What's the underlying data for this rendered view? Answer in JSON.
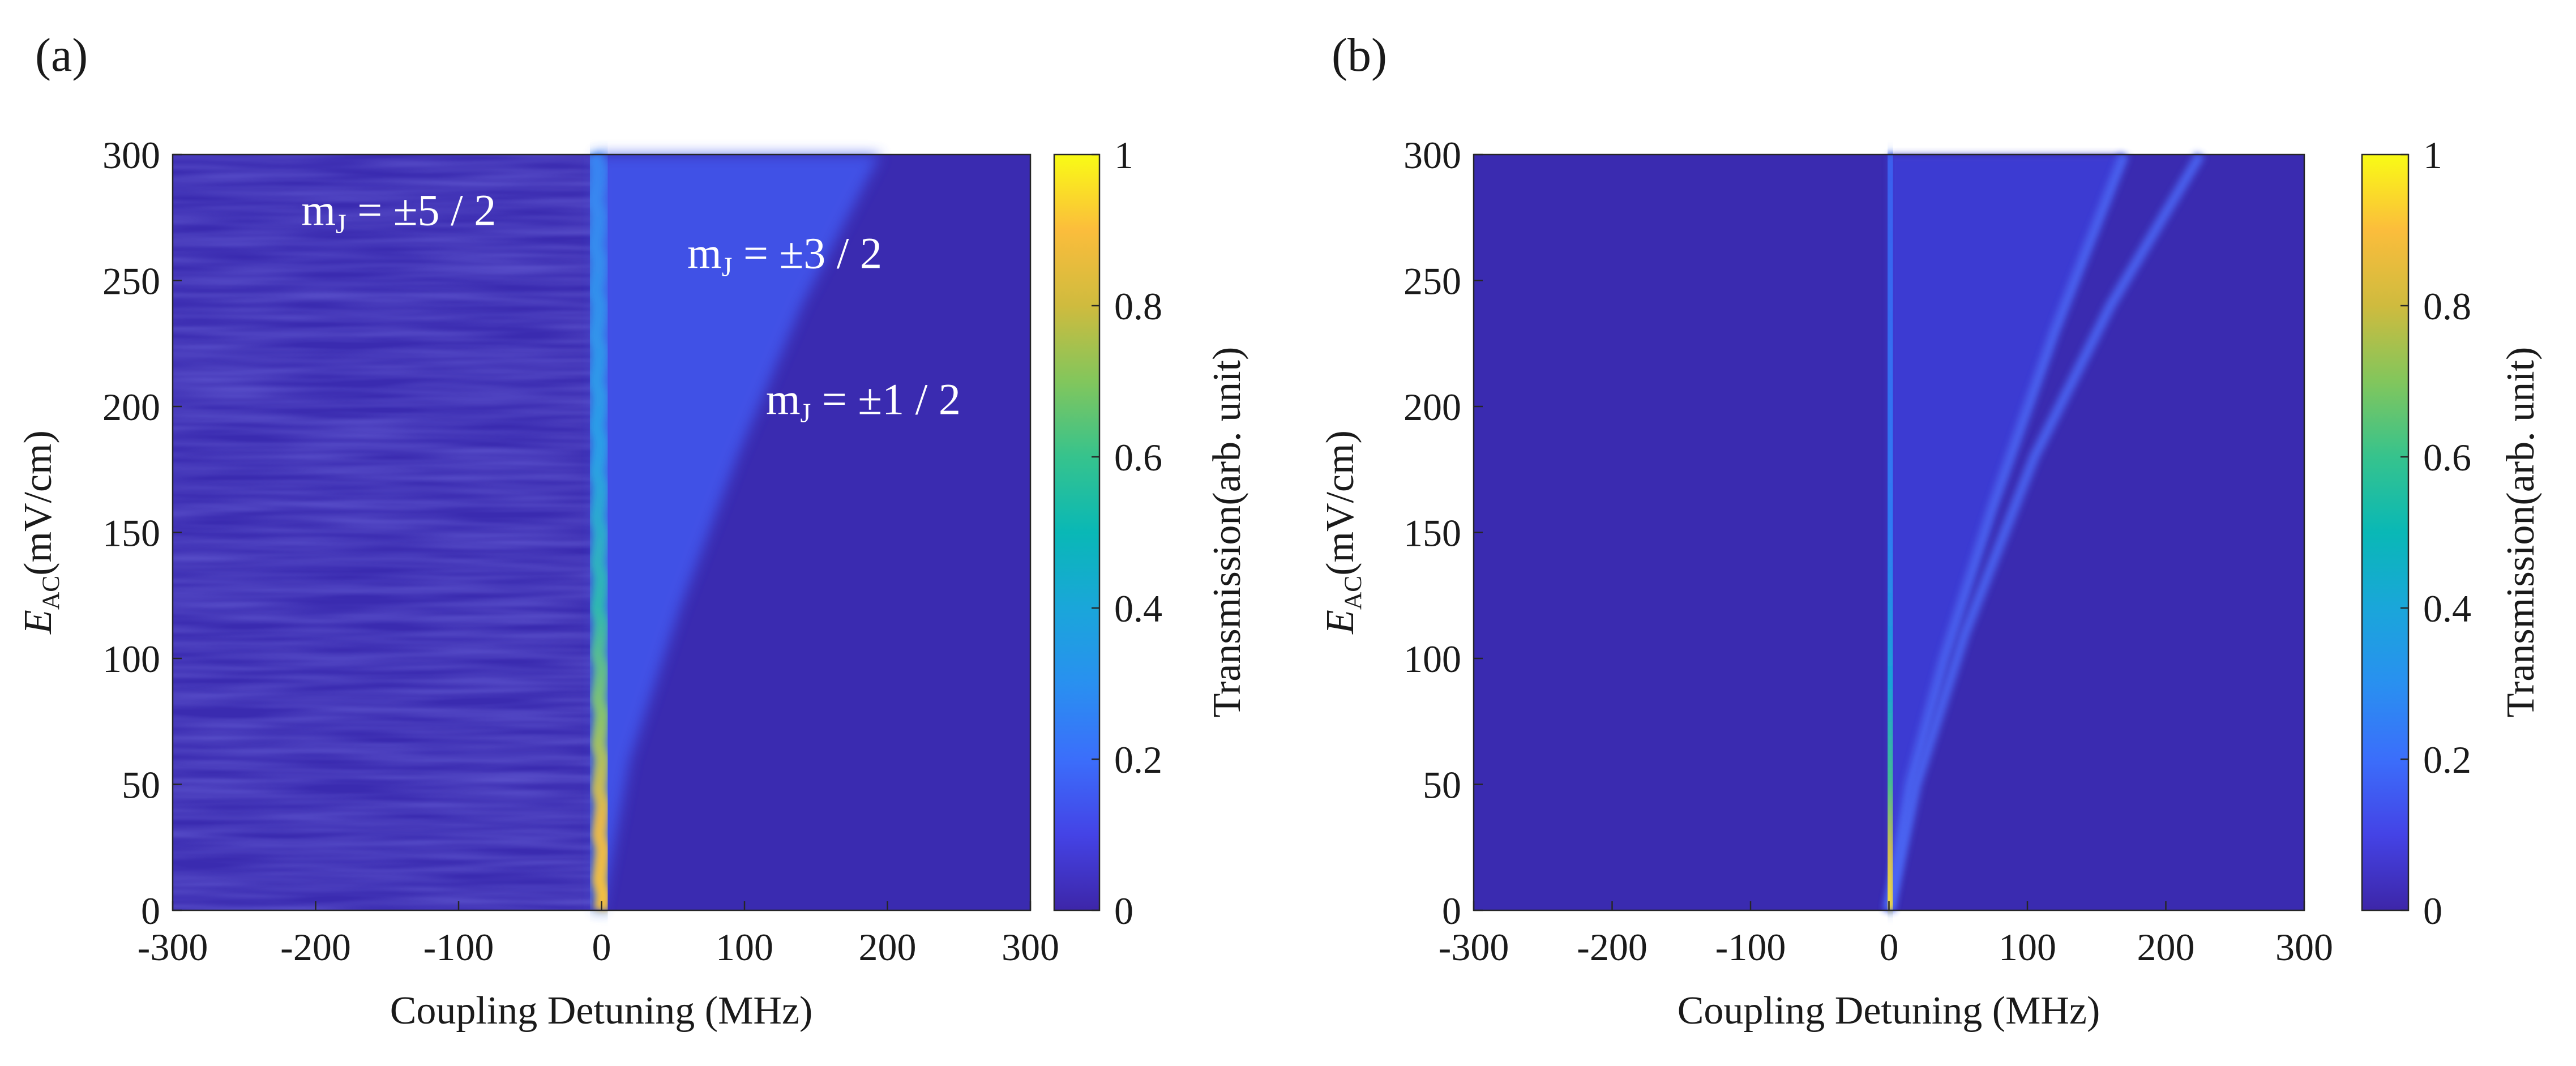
{
  "chart_data": [
    {
      "type": "heatmap",
      "panel_label": "(a)",
      "xlabel": "Coupling Detuning (MHz)",
      "ylabel": {
        "main": "E",
        "sub": "AC",
        "unit": "(mV/cm)"
      },
      "xlim": [
        -300,
        300
      ],
      "ylim": [
        0,
        300
      ],
      "xticks": [
        -300,
        -200,
        -100,
        0,
        100,
        200,
        300
      ],
      "yticks": [
        0,
        50,
        100,
        150,
        200,
        250,
        300
      ],
      "colorbar": {
        "label": "Transmission(arb. unit)",
        "range": [
          0,
          1
        ],
        "ticks": [
          0,
          0.2,
          0.4,
          0.6,
          0.8,
          1
        ]
      },
      "annotations": [
        {
          "text_main": "m",
          "text_sub": "J",
          "text_rest": " = ±5 / 2",
          "x": -210,
          "y": 272
        },
        {
          "text_main": "m",
          "text_sub": "J",
          "text_rest": " = ±3 / 2",
          "x": 60,
          "y": 255
        },
        {
          "text_main": "m",
          "text_sub": "J",
          "text_rest": " = ±1 / 2",
          "x": 115,
          "y": 197
        }
      ],
      "features": {
        "central_line": {
          "x_center": 0,
          "peak_transmission": 0.85
        },
        "fan_edge": [
          [
            0,
            0
          ],
          [
            20,
            60
          ],
          [
            55,
            120
          ],
          [
            95,
            180
          ],
          [
            140,
            240
          ],
          [
            195,
            300
          ]
        ]
      }
    },
    {
      "type": "heatmap",
      "panel_label": "(b)",
      "xlabel": "Coupling Detuning (MHz)",
      "ylabel": {
        "main": "E",
        "sub": "AC",
        "unit": "(mV/cm)"
      },
      "xlim": [
        -300,
        300
      ],
      "ylim": [
        0,
        300
      ],
      "xticks": [
        -300,
        -200,
        -100,
        0,
        100,
        200,
        300
      ],
      "yticks": [
        0,
        50,
        100,
        150,
        200,
        250,
        300
      ],
      "colorbar": {
        "label": "Transmission(arb. unit)",
        "range": [
          0,
          1
        ],
        "ticks": [
          0,
          0.2,
          0.4,
          0.6,
          0.8,
          1
        ]
      },
      "features": {
        "central_line": {
          "x_center": 0,
          "peak_transmission": 0.9
        },
        "branches": [
          [
            [
              0,
              0
            ],
            [
              15,
              50
            ],
            [
              40,
              100
            ],
            [
              75,
              160
            ],
            [
              120,
              230
            ],
            [
              170,
              300
            ]
          ],
          [
            [
              0,
              0
            ],
            [
              20,
              50
            ],
            [
              55,
              110
            ],
            [
              105,
              180
            ],
            [
              160,
              240
            ],
            [
              225,
              300
            ]
          ]
        ]
      }
    }
  ]
}
